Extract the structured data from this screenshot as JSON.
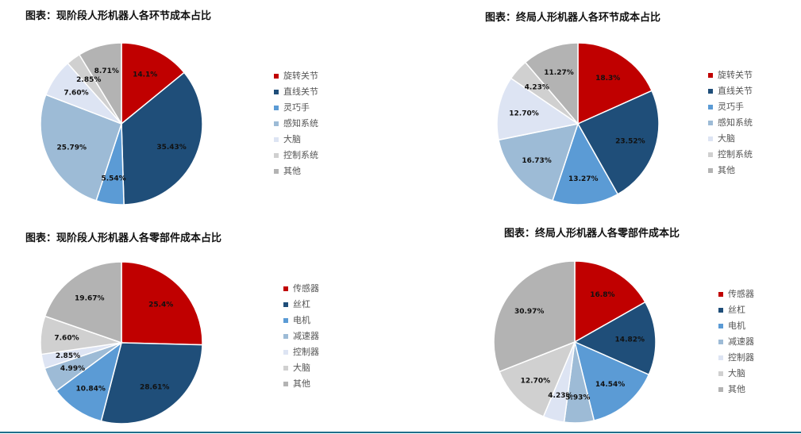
{
  "colors": {
    "red": "#c00000",
    "navy": "#1f4e79",
    "blue": "#5b9bd5",
    "lightblue": "#9dbbd6",
    "paleblue": "#dde4f3",
    "lightgray": "#d0d0d0",
    "gray": "#b3b3b3"
  },
  "chart_data": [
    {
      "type": "pie",
      "title": "图表：现阶段人形机器人各环节成本占比",
      "categories": [
        "旋转关节",
        "直线关节",
        "灵巧手",
        "感知系统",
        "大脑",
        "控制系统",
        "其他"
      ],
      "values": [
        14.1,
        35.43,
        5.54,
        25.79,
        7.6,
        2.85,
        8.71
      ],
      "labels": [
        "14.1%",
        "35.43%",
        "5.54%",
        "25.79%",
        "7.60%",
        "2.85%",
        "8.71%"
      ],
      "colors": [
        "#c00000",
        "#1f4e79",
        "#5b9bd5",
        "#9dbbd6",
        "#dde4f3",
        "#d0d0d0",
        "#b3b3b3"
      ],
      "legend": "right"
    },
    {
      "type": "pie",
      "title": "图表：终局人形机器人各环节成本占比",
      "categories": [
        "旋转关节",
        "直线关节",
        "灵巧手",
        "感知系统",
        "大脑",
        "控制系统",
        "其他"
      ],
      "values": [
        18.3,
        23.52,
        13.27,
        16.73,
        12.7,
        4.23,
        11.27
      ],
      "labels": [
        "18.3%",
        "23.52%",
        "13.27%",
        "16.73%",
        "12.70%",
        "4.23%",
        "11.27%"
      ],
      "colors": [
        "#c00000",
        "#1f4e79",
        "#5b9bd5",
        "#9dbbd6",
        "#dde4f3",
        "#d0d0d0",
        "#b3b3b3"
      ],
      "legend": "right"
    },
    {
      "type": "pie",
      "title": "图表：现阶段人形机器人各零部件成本占比",
      "categories": [
        "传感器",
        "丝杠",
        "电机",
        "减速器",
        "控制器",
        "大脑",
        "其他"
      ],
      "values": [
        25.4,
        28.61,
        10.84,
        4.99,
        2.85,
        7.6,
        19.67
      ],
      "labels": [
        "25.4%",
        "28.61%",
        "10.84%",
        "4.99%",
        "2.85%",
        "7.60%",
        "19.67%"
      ],
      "colors": [
        "#c00000",
        "#1f4e79",
        "#5b9bd5",
        "#9dbbd6",
        "#dde4f3",
        "#d0d0d0",
        "#b3b3b3"
      ],
      "legend": "right"
    },
    {
      "type": "pie",
      "title": "图表：终局人形机器人各零部件成本比",
      "categories": [
        "传感器",
        "丝杠",
        "电机",
        "减速器",
        "控制器",
        "大脑",
        "其他"
      ],
      "values": [
        16.8,
        14.82,
        14.54,
        5.93,
        4.23,
        12.7,
        30.97
      ],
      "labels": [
        "16.8%",
        "14.82%",
        "14.54%",
        "5.93%",
        "4.23%",
        "12.70%",
        "30.97%"
      ],
      "colors": [
        "#c00000",
        "#1f4e79",
        "#5b9bd5",
        "#9dbbd6",
        "#dde4f3",
        "#d0d0d0",
        "#b3b3b3"
      ],
      "legend": "right"
    }
  ]
}
